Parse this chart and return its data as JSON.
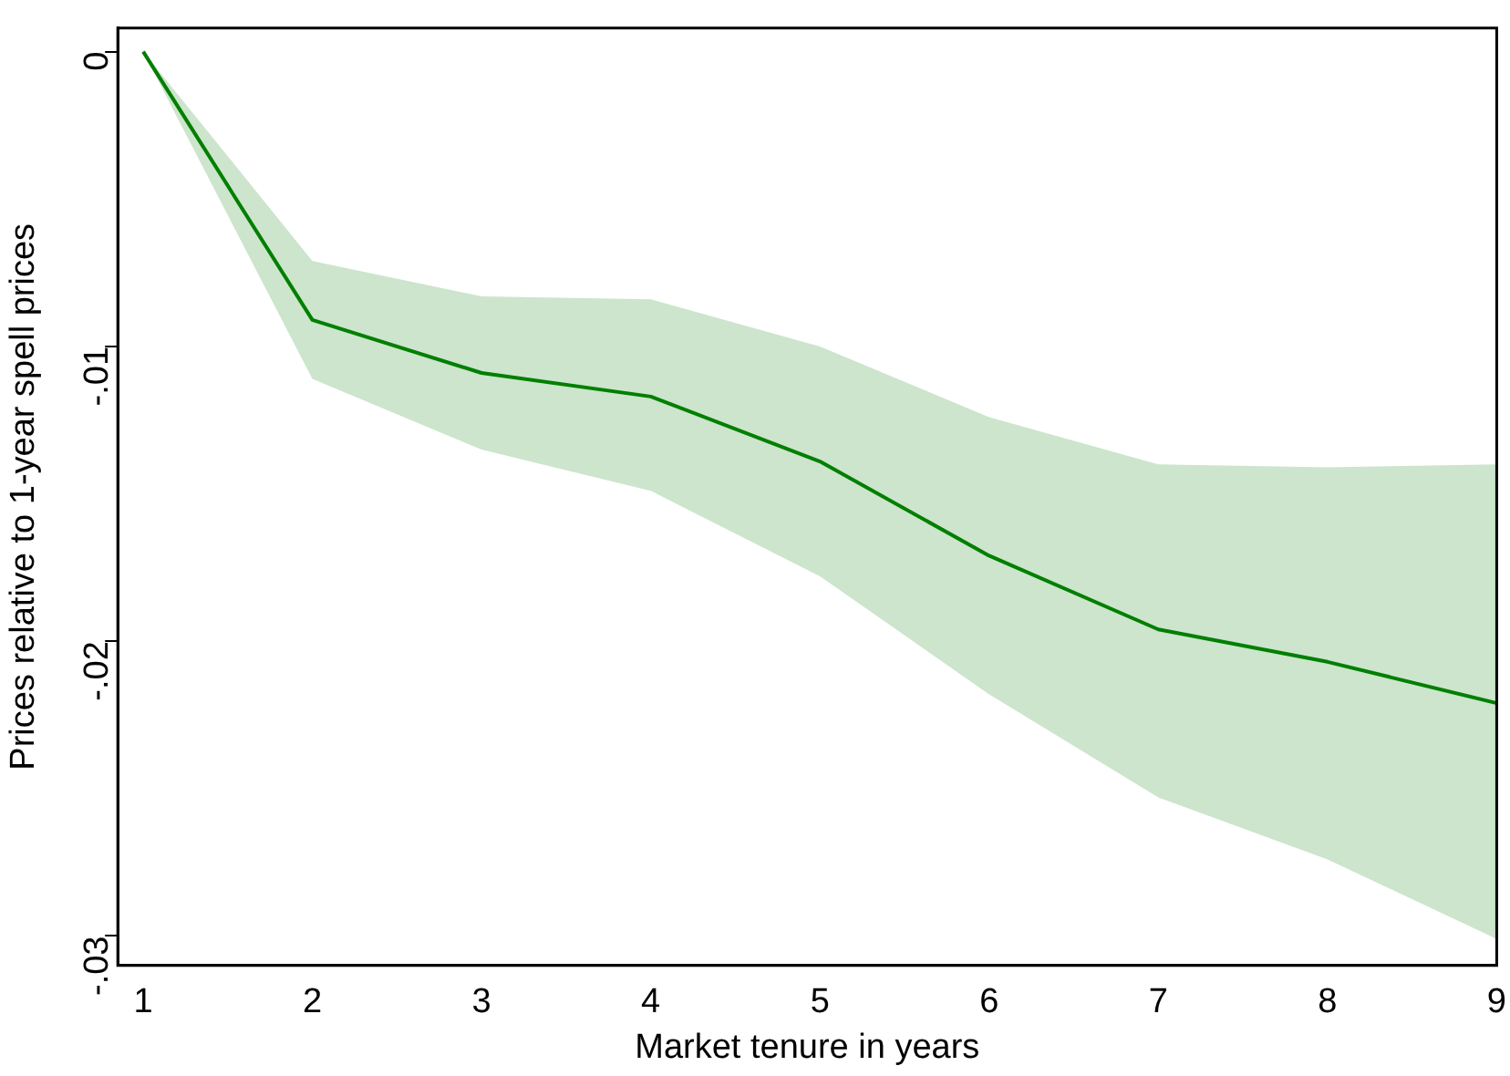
{
  "chart_data": {
    "type": "line",
    "xlabel": "Market tenure in years",
    "ylabel": "Prices relative to 1-year spell prices",
    "x": [
      1,
      2,
      3,
      4,
      5,
      6,
      7,
      8,
      9
    ],
    "series": [
      {
        "color": "#007f00",
        "values": [
          0,
          -0.0091,
          -0.0109,
          -0.0117,
          -0.0139,
          -0.0171,
          -0.0196,
          -0.0207,
          -0.0221
        ],
        "lower": [
          0,
          -0.0111,
          -0.0135,
          -0.0149,
          -0.0178,
          -0.0218,
          -0.0253,
          -0.0274,
          -0.0301
        ],
        "upper": [
          0,
          -0.0071,
          -0.0083,
          -0.0084,
          -0.01,
          -0.0124,
          -0.014,
          -0.0141,
          -0.014
        ]
      }
    ],
    "xlim": [
      0.85,
      9
    ],
    "ylim": [
      -0.031,
      0.0008
    ],
    "xticks": [
      1,
      2,
      3,
      4,
      5,
      6,
      7,
      8,
      9
    ],
    "yticks": [
      0,
      {
        "value": -0.01,
        "label": "-.01"
      },
      {
        "value": -0.02,
        "label": "-.02"
      },
      {
        "value": -0.03,
        "label": "-.03"
      }
    ],
    "grid": false,
    "legend": false,
    "marker": "none",
    "line_style": "solid"
  }
}
